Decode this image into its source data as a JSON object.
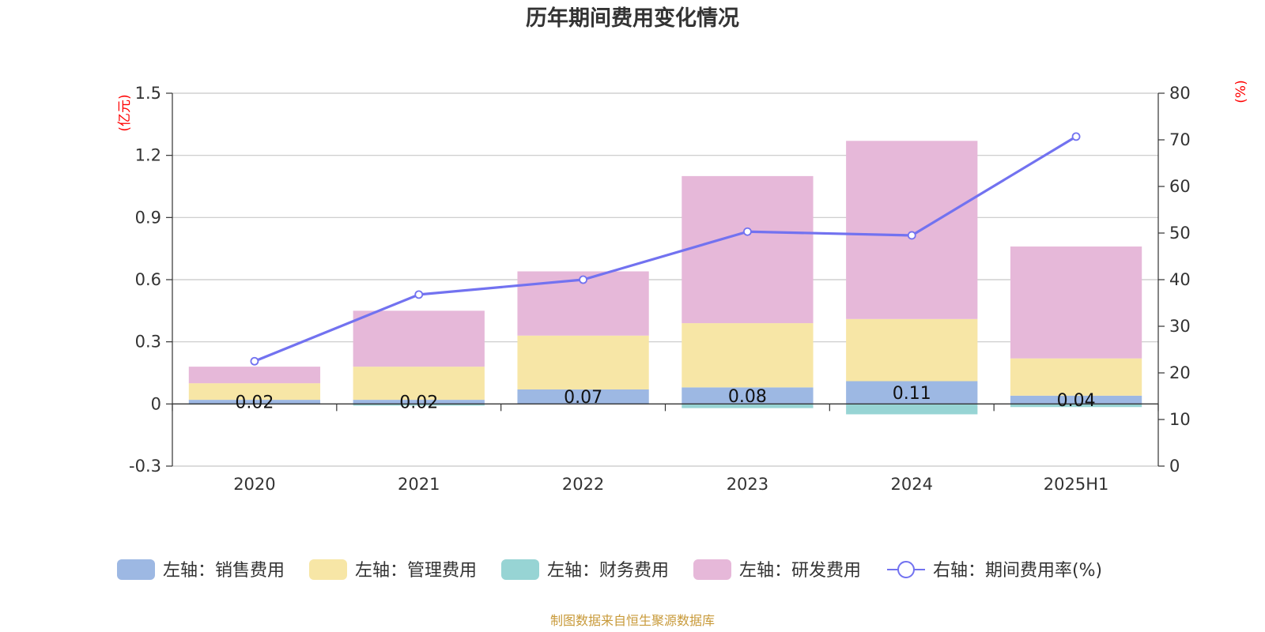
{
  "title": "历年期间费用变化情况",
  "source": "制图数据来自恒生聚源数据库",
  "colors": {
    "sales": "#9db8e3",
    "admin": "#f7e6a6",
    "finance": "#97d4d4",
    "rnd": "#e6b8d9",
    "rate": "#7272f0",
    "grid": "#c8c8c8",
    "axis": "#333333",
    "unit": "#ff0000"
  },
  "chart_data": {
    "type": "bar",
    "stacked": true,
    "title": "历年期间费用变化情况",
    "categories": [
      "2020",
      "2021",
      "2022",
      "2023",
      "2024",
      "2025H1"
    ],
    "left_axis": {
      "unit": "(亿元)",
      "ylim": [
        -0.3,
        1.5
      ],
      "ticks": [
        -0.3,
        0,
        0.3,
        0.6,
        0.9,
        1.2,
        1.5
      ],
      "tick_labels": [
        "-0.3",
        "0",
        "0.3",
        "0.6",
        "0.9",
        "1.2",
        "1.5"
      ]
    },
    "right_axis": {
      "unit": "(%)",
      "ylim": [
        0,
        80
      ],
      "ticks": [
        0,
        10,
        20,
        30,
        40,
        50,
        60,
        70,
        80
      ],
      "tick_labels": [
        "0",
        "10",
        "20",
        "30",
        "40",
        "50",
        "60",
        "70",
        "80"
      ]
    },
    "series": [
      {
        "key": "sales",
        "name": "左轴：销售费用",
        "axis": "left",
        "values": [
          0.02,
          0.02,
          0.07,
          0.08,
          0.11,
          0.04
        ],
        "labels": [
          "0.02",
          "0.02",
          "0.07",
          "0.08",
          "0.11",
          "0.04"
        ]
      },
      {
        "key": "admin",
        "name": "左轴：管理费用",
        "axis": "left",
        "values": [
          0.08,
          0.16,
          0.26,
          0.31,
          0.3,
          0.18
        ]
      },
      {
        "key": "finance",
        "name": "左轴：财务费用",
        "axis": "left",
        "values": [
          -0.003,
          -0.008,
          0.0,
          -0.02,
          -0.05,
          -0.015
        ]
      },
      {
        "key": "rnd",
        "name": "左轴：研发费用",
        "axis": "left",
        "values": [
          0.08,
          0.27,
          0.31,
          0.71,
          0.86,
          0.54
        ]
      },
      {
        "key": "rate",
        "name": "右轴：期间费用率(%)",
        "axis": "right",
        "type": "line",
        "values": [
          22.5,
          36.8,
          40.0,
          50.3,
          49.5,
          70.7
        ]
      }
    ]
  }
}
